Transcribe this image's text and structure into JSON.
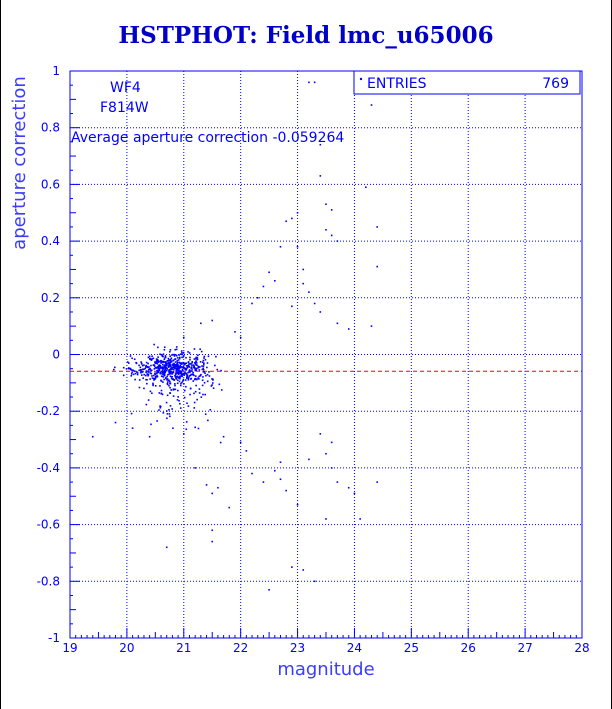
{
  "title": "HSTPHOT: Field lmc_u65006",
  "chart_data": {
    "type": "scatter",
    "title": "HSTPHOT: Field lmc_u65006",
    "xlabel": "magnitude",
    "ylabel": "aperture correction",
    "xlim": [
      19,
      28
    ],
    "ylim": [
      -1,
      1
    ],
    "xticks": [
      19,
      20,
      21,
      22,
      23,
      24,
      25,
      26,
      27,
      28
    ],
    "yticks": [
      -1,
      -0.8,
      -0.6,
      -0.4,
      -0.2,
      0,
      0.2,
      0.4,
      0.6,
      0.8,
      1
    ],
    "grid": true,
    "annotations": {
      "chip": "WF4",
      "filter": "F814W",
      "average_text": "Average aperture correction -0.059264"
    },
    "average_line": -0.059264,
    "stats_box": {
      "label": "ENTRIES",
      "value": "769"
    },
    "outliers": [
      [
        23.2,
        0.96
      ],
      [
        23.3,
        0.96
      ],
      [
        24.3,
        0.88
      ],
      [
        23.4,
        0.74
      ],
      [
        23.4,
        0.63
      ],
      [
        23.0,
        0.5
      ],
      [
        22.9,
        0.48
      ],
      [
        22.8,
        0.47
      ],
      [
        23.5,
        0.53
      ],
      [
        23.6,
        0.51
      ],
      [
        23.5,
        0.44
      ],
      [
        23.6,
        0.42
      ],
      [
        23.7,
        0.4
      ],
      [
        24.4,
        0.45
      ],
      [
        24.2,
        0.59
      ],
      [
        24.4,
        0.31
      ],
      [
        22.7,
        0.38
      ],
      [
        22.5,
        0.29
      ],
      [
        22.6,
        0.26
      ],
      [
        22.4,
        0.24
      ],
      [
        23.0,
        0.38
      ],
      [
        23.1,
        0.3
      ],
      [
        23.1,
        0.25
      ],
      [
        23.2,
        0.22
      ],
      [
        23.3,
        0.18
      ],
      [
        23.4,
        0.15
      ],
      [
        23.7,
        0.11
      ],
      [
        23.9,
        0.09
      ],
      [
        24.3,
        0.1
      ],
      [
        22.9,
        0.17
      ],
      [
        22.3,
        0.2
      ],
      [
        22.2,
        0.18
      ],
      [
        21.5,
        0.12
      ],
      [
        21.3,
        0.11
      ],
      [
        21.9,
        0.08
      ],
      [
        22.0,
        0.06
      ],
      [
        21.0,
        0.06
      ],
      [
        19.4,
        -0.29
      ],
      [
        19.8,
        -0.24
      ],
      [
        20.1,
        -0.26
      ],
      [
        20.4,
        -0.29
      ],
      [
        20.7,
        -0.68
      ],
      [
        21.0,
        -0.28
      ],
      [
        21.2,
        -0.4
      ],
      [
        21.4,
        -0.46
      ],
      [
        21.5,
        -0.49
      ],
      [
        21.6,
        -0.47
      ],
      [
        21.5,
        -0.62
      ],
      [
        21.5,
        -0.66
      ],
      [
        21.8,
        -0.54
      ],
      [
        22.1,
        -0.34
      ],
      [
        22.2,
        -0.42
      ],
      [
        22.4,
        -0.45
      ],
      [
        22.5,
        -0.83
      ],
      [
        22.6,
        -0.41
      ],
      [
        22.7,
        -0.38
      ],
      [
        22.7,
        -0.44
      ],
      [
        22.8,
        -0.48
      ],
      [
        23.0,
        -0.53
      ],
      [
        22.9,
        -0.75
      ],
      [
        23.1,
        -0.76
      ],
      [
        23.3,
        -0.8
      ],
      [
        23.5,
        -0.58
      ],
      [
        23.5,
        -0.35
      ],
      [
        23.6,
        -0.4
      ],
      [
        23.7,
        -0.45
      ],
      [
        23.9,
        -0.47
      ],
      [
        24.0,
        -0.49
      ],
      [
        24.1,
        -0.58
      ],
      [
        24.4,
        -0.45
      ],
      [
        23.6,
        -0.31
      ],
      [
        23.4,
        -0.28
      ],
      [
        23.2,
        -0.37
      ],
      [
        22.0,
        -0.31
      ],
      [
        21.7,
        -0.29
      ]
    ],
    "cluster": {
      "center_x": 20.8,
      "center_y": -0.05,
      "spread_x": 0.7,
      "spread_y": 0.06
    }
  }
}
